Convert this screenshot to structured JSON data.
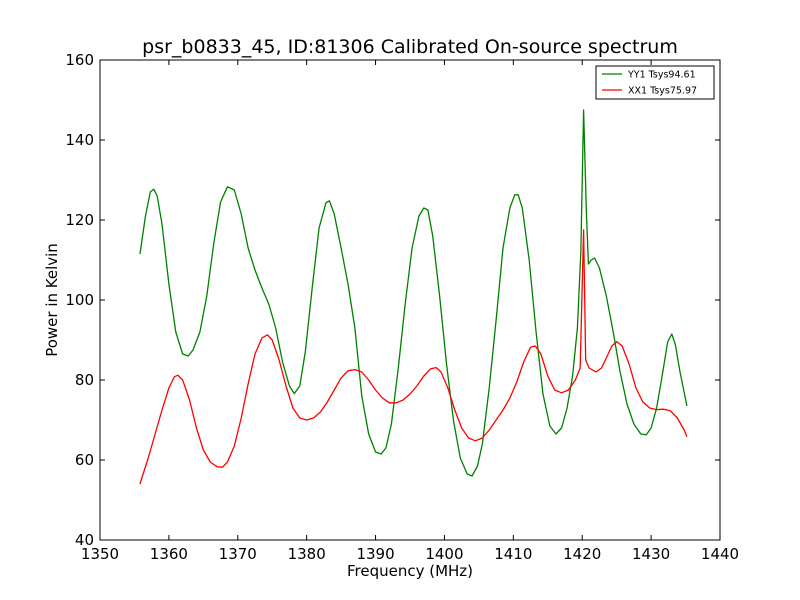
{
  "chart_data": {
    "type": "line",
    "title": "psr_b0833_45, ID:81306 Calibrated On-source spectrum",
    "xlabel": "Frequency (MHz)",
    "ylabel": "Power in Kelvin",
    "xlim": [
      1350,
      1440
    ],
    "ylim": [
      40,
      160
    ],
    "xticks": [
      1350,
      1360,
      1370,
      1380,
      1390,
      1400,
      1410,
      1420,
      1430,
      1440
    ],
    "yticks": [
      40,
      60,
      80,
      100,
      120,
      140,
      160
    ],
    "grid": false,
    "legend_position": "top-right",
    "series": [
      {
        "name": "YY1 Tsys94.61",
        "color": "#008000",
        "points": [
          [
            1355.8,
            111.5
          ],
          [
            1356.6,
            121
          ],
          [
            1357.3,
            127
          ],
          [
            1357.8,
            127.7
          ],
          [
            1358.3,
            126
          ],
          [
            1359,
            119
          ],
          [
            1360,
            104
          ],
          [
            1361,
            92
          ],
          [
            1362,
            86.5
          ],
          [
            1362.8,
            86
          ],
          [
            1363.5,
            87.5
          ],
          [
            1364.5,
            92
          ],
          [
            1365.5,
            101
          ],
          [
            1366.5,
            114
          ],
          [
            1367.5,
            124.5
          ],
          [
            1368.5,
            128.3
          ],
          [
            1369.5,
            127.5
          ],
          [
            1370.5,
            121.5
          ],
          [
            1371.5,
            113
          ],
          [
            1372.5,
            107.5
          ],
          [
            1373.5,
            103
          ],
          [
            1374.5,
            99
          ],
          [
            1375.5,
            93
          ],
          [
            1376.5,
            84.5
          ],
          [
            1377.5,
            78.5
          ],
          [
            1378.2,
            76.6
          ],
          [
            1379,
            78.5
          ],
          [
            1379.8,
            87
          ],
          [
            1380.8,
            103
          ],
          [
            1381.8,
            118
          ],
          [
            1382.8,
            124.3
          ],
          [
            1383.3,
            124.8
          ],
          [
            1384,
            121.5
          ],
          [
            1385,
            113
          ],
          [
            1386,
            104
          ],
          [
            1387,
            93
          ],
          [
            1388,
            76
          ],
          [
            1389,
            66.5
          ],
          [
            1390,
            62
          ],
          [
            1390.8,
            61.5
          ],
          [
            1391.5,
            63
          ],
          [
            1392.3,
            69
          ],
          [
            1393.3,
            83
          ],
          [
            1394.3,
            99
          ],
          [
            1395.3,
            113
          ],
          [
            1396.3,
            121
          ],
          [
            1397,
            123
          ],
          [
            1397.6,
            122.5
          ],
          [
            1398.3,
            116
          ],
          [
            1399.3,
            101
          ],
          [
            1400.3,
            84
          ],
          [
            1401.3,
            70
          ],
          [
            1402.3,
            60.5
          ],
          [
            1403.3,
            56.5
          ],
          [
            1404,
            56
          ],
          [
            1404.8,
            58.5
          ],
          [
            1405.5,
            64
          ],
          [
            1406.5,
            78
          ],
          [
            1407.5,
            95
          ],
          [
            1408.5,
            113
          ],
          [
            1409.5,
            123
          ],
          [
            1410.2,
            126.3
          ],
          [
            1410.7,
            126.3
          ],
          [
            1411.3,
            123
          ],
          [
            1412.3,
            110
          ],
          [
            1413.3,
            92
          ],
          [
            1414.3,
            76.5
          ],
          [
            1415.3,
            68.5
          ],
          [
            1416.2,
            66.5
          ],
          [
            1417,
            68
          ],
          [
            1417.8,
            73
          ],
          [
            1418.6,
            81
          ],
          [
            1419.3,
            93
          ],
          [
            1419.8,
            112
          ],
          [
            1420.2,
            147.5
          ],
          [
            1420.6,
            122
          ],
          [
            1420.9,
            109
          ],
          [
            1421.3,
            110
          ],
          [
            1421.8,
            110.5
          ],
          [
            1422.5,
            108
          ],
          [
            1423.5,
            101
          ],
          [
            1424.5,
            92
          ],
          [
            1425.5,
            82
          ],
          [
            1426.5,
            74
          ],
          [
            1427.5,
            69
          ],
          [
            1428.5,
            66.5
          ],
          [
            1429.3,
            66.3
          ],
          [
            1430,
            68
          ],
          [
            1430.8,
            73
          ],
          [
            1431.6,
            81
          ],
          [
            1432.4,
            89.5
          ],
          [
            1433,
            91.5
          ],
          [
            1433.5,
            89
          ],
          [
            1434.2,
            82
          ],
          [
            1435.2,
            73.5
          ]
        ]
      },
      {
        "name": "XX1 Tsys75.97",
        "color": "#ff0000",
        "points": [
          [
            1355.8,
            54
          ],
          [
            1357,
            60.5
          ],
          [
            1358,
            66.5
          ],
          [
            1359,
            72.5
          ],
          [
            1360,
            78
          ],
          [
            1360.8,
            80.8
          ],
          [
            1361.3,
            81.2
          ],
          [
            1362,
            80
          ],
          [
            1363,
            75
          ],
          [
            1364,
            68
          ],
          [
            1365,
            62.5
          ],
          [
            1366,
            59.5
          ],
          [
            1367,
            58.3
          ],
          [
            1367.8,
            58.2
          ],
          [
            1368.5,
            59.5
          ],
          [
            1369.5,
            63.5
          ],
          [
            1370.5,
            70.5
          ],
          [
            1371.5,
            79
          ],
          [
            1372.5,
            86.5
          ],
          [
            1373.5,
            90.5
          ],
          [
            1374.3,
            91.3
          ],
          [
            1375,
            90
          ],
          [
            1376,
            85
          ],
          [
            1377,
            78.5
          ],
          [
            1378,
            73
          ],
          [
            1379,
            70.5
          ],
          [
            1380,
            70
          ],
          [
            1381,
            70.5
          ],
          [
            1382,
            72
          ],
          [
            1383,
            74.5
          ],
          [
            1384,
            77.5
          ],
          [
            1385,
            80.5
          ],
          [
            1386,
            82.3
          ],
          [
            1387,
            82.6
          ],
          [
            1388,
            82
          ],
          [
            1389,
            80
          ],
          [
            1390,
            77.5
          ],
          [
            1391,
            75.5
          ],
          [
            1392,
            74.3
          ],
          [
            1393,
            74.3
          ],
          [
            1394,
            75
          ],
          [
            1395,
            76.5
          ],
          [
            1396,
            78.5
          ],
          [
            1397,
            81
          ],
          [
            1398,
            82.8
          ],
          [
            1398.8,
            83.1
          ],
          [
            1399.5,
            82
          ],
          [
            1400.5,
            78
          ],
          [
            1401.5,
            72.5
          ],
          [
            1402.5,
            68
          ],
          [
            1403.5,
            65.5
          ],
          [
            1404.5,
            64.8
          ],
          [
            1405.5,
            65.5
          ],
          [
            1406.5,
            67.5
          ],
          [
            1407.5,
            70
          ],
          [
            1408.5,
            72.5
          ],
          [
            1409.5,
            75.5
          ],
          [
            1410.5,
            79.5
          ],
          [
            1411.5,
            84.5
          ],
          [
            1412.5,
            88.2
          ],
          [
            1413.2,
            88.5
          ],
          [
            1414,
            86.5
          ],
          [
            1415,
            81
          ],
          [
            1416,
            77.5
          ],
          [
            1417,
            76.8
          ],
          [
            1418,
            77.5
          ],
          [
            1419,
            80
          ],
          [
            1419.7,
            83
          ],
          [
            1420.2,
            117.5
          ],
          [
            1420.5,
            85
          ],
          [
            1421,
            83
          ],
          [
            1422,
            82
          ],
          [
            1422.8,
            83
          ],
          [
            1423.5,
            85.5
          ],
          [
            1424.3,
            88.5
          ],
          [
            1425,
            89.6
          ],
          [
            1425.8,
            88.5
          ],
          [
            1426.8,
            84
          ],
          [
            1427.8,
            78
          ],
          [
            1428.8,
            74.5
          ],
          [
            1429.8,
            73
          ],
          [
            1430.8,
            72.6
          ],
          [
            1431.8,
            72.7
          ],
          [
            1432.8,
            72.3
          ],
          [
            1433.8,
            70.5
          ],
          [
            1434.8,
            67.5
          ],
          [
            1435.2,
            65.8
          ]
        ]
      }
    ]
  }
}
